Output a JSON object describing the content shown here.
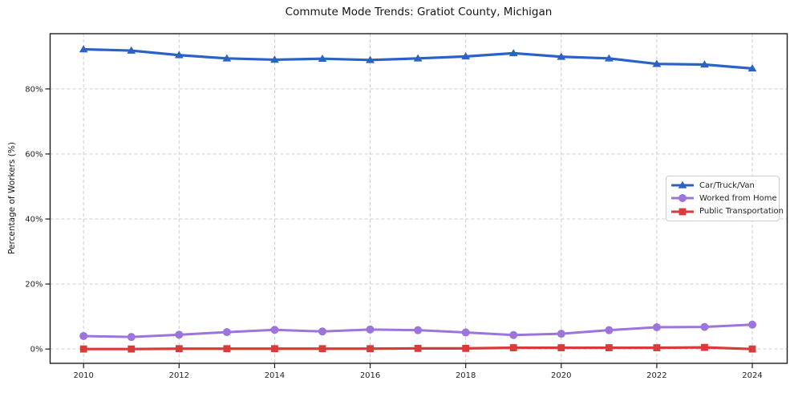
{
  "chart_data": {
    "type": "line",
    "title": "Commute Mode Trends: Gratiot County, Michigan",
    "xlabel": "",
    "ylabel": "Percentage of Workers (%)",
    "x": [
      2010,
      2011,
      2012,
      2013,
      2014,
      2015,
      2016,
      2017,
      2018,
      2019,
      2020,
      2021,
      2022,
      2023,
      2024
    ],
    "x_tick_years": [
      2010,
      2012,
      2014,
      2016,
      2018,
      2020,
      2022,
      2024
    ],
    "y_ticks": [
      0,
      20,
      40,
      60,
      80
    ],
    "y_tick_suffix": "%",
    "xlim": [
      2009.3,
      2024.73
    ],
    "ylim": [
      -4.4,
      97.0
    ],
    "grid": true,
    "grid_style": "dashed",
    "legend_position": "center-right",
    "series": [
      {
        "id": "car-truck-van",
        "name": "Car/Truck/Van",
        "color": "#2b62c5",
        "marker": "triangle",
        "line_width": 3.2,
        "values": [
          92.2,
          91.8,
          90.4,
          89.4,
          89.0,
          89.3,
          88.9,
          89.4,
          90.0,
          91.0,
          89.9,
          89.4,
          87.7,
          87.5,
          86.3
        ]
      },
      {
        "id": "worked-from-home",
        "name": "Worked from Home",
        "color": "#9b74dc",
        "marker": "circle",
        "line_width": 3.0,
        "values": [
          4.0,
          3.7,
          4.4,
          5.2,
          5.9,
          5.4,
          6.0,
          5.8,
          5.1,
          4.3,
          4.7,
          5.8,
          6.7,
          6.8,
          7.5
        ]
      },
      {
        "id": "public-transportation",
        "name": "Public Transportation",
        "color": "#d93a3a",
        "marker": "square",
        "line_width": 3.2,
        "values": [
          0.0,
          0.0,
          0.1,
          0.1,
          0.1,
          0.1,
          0.1,
          0.2,
          0.2,
          0.4,
          0.4,
          0.4,
          0.4,
          0.5,
          0.0
        ]
      }
    ]
  }
}
